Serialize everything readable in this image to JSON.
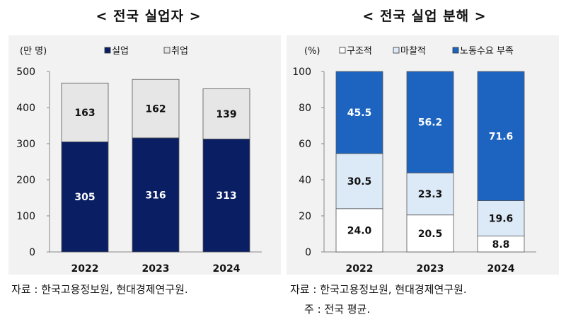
{
  "left_title": "< 전국 실업자 >",
  "right_title": "< 전국 실업 분해 >",
  "source_left": "자료 : 한국고용정보원, 현대경제연구원.",
  "source_right": "자료 : 한국고용정보원, 현대경제연구원.",
  "note_right": "주 : 전국 평균.",
  "colors": {
    "navy": "#0a1f63",
    "light_gray": "#e6e6e6",
    "blue": "#1c64c0",
    "light_blue": "#dce9f7",
    "white": "#ffffff"
  },
  "chart_data": [
    {
      "type": "bar",
      "stacked": true,
      "title": "< 전국 실업자 >",
      "unit_label": "(만 명)",
      "categories": [
        "2022",
        "2023",
        "2024"
      ],
      "series": [
        {
          "name": "실업",
          "values": [
            305,
            316,
            313
          ],
          "color": "#0a1f63",
          "label_color": "#ffffff"
        },
        {
          "name": "취업",
          "values": [
            163,
            162,
            139
          ],
          "color": "#e6e6e6",
          "label_color": "#111111"
        }
      ],
      "yticks": [
        0,
        100,
        200,
        300,
        400,
        500
      ],
      "ylim": [
        0,
        500
      ],
      "grid": false,
      "legend": "top"
    },
    {
      "type": "bar",
      "stacked": true,
      "title": "< 전국 실업 분해 >",
      "unit_label": "(%)",
      "categories": [
        "2022",
        "2023",
        "2024"
      ],
      "series": [
        {
          "name": "구조적",
          "values": [
            24.0,
            20.5,
            8.8
          ],
          "color": "#ffffff",
          "label_color": "#111111"
        },
        {
          "name": "마찰적",
          "values": [
            30.5,
            23.3,
            19.6
          ],
          "color": "#dce9f7",
          "label_color": "#111111"
        },
        {
          "name": "노동수요 부족",
          "values": [
            45.5,
            56.2,
            71.6
          ],
          "color": "#1c64c0",
          "label_color": "#ffffff"
        }
      ],
      "yticks": [
        0,
        20,
        40,
        60,
        80,
        100
      ],
      "ylim": [
        0,
        100
      ],
      "grid": false,
      "legend": "top"
    }
  ]
}
